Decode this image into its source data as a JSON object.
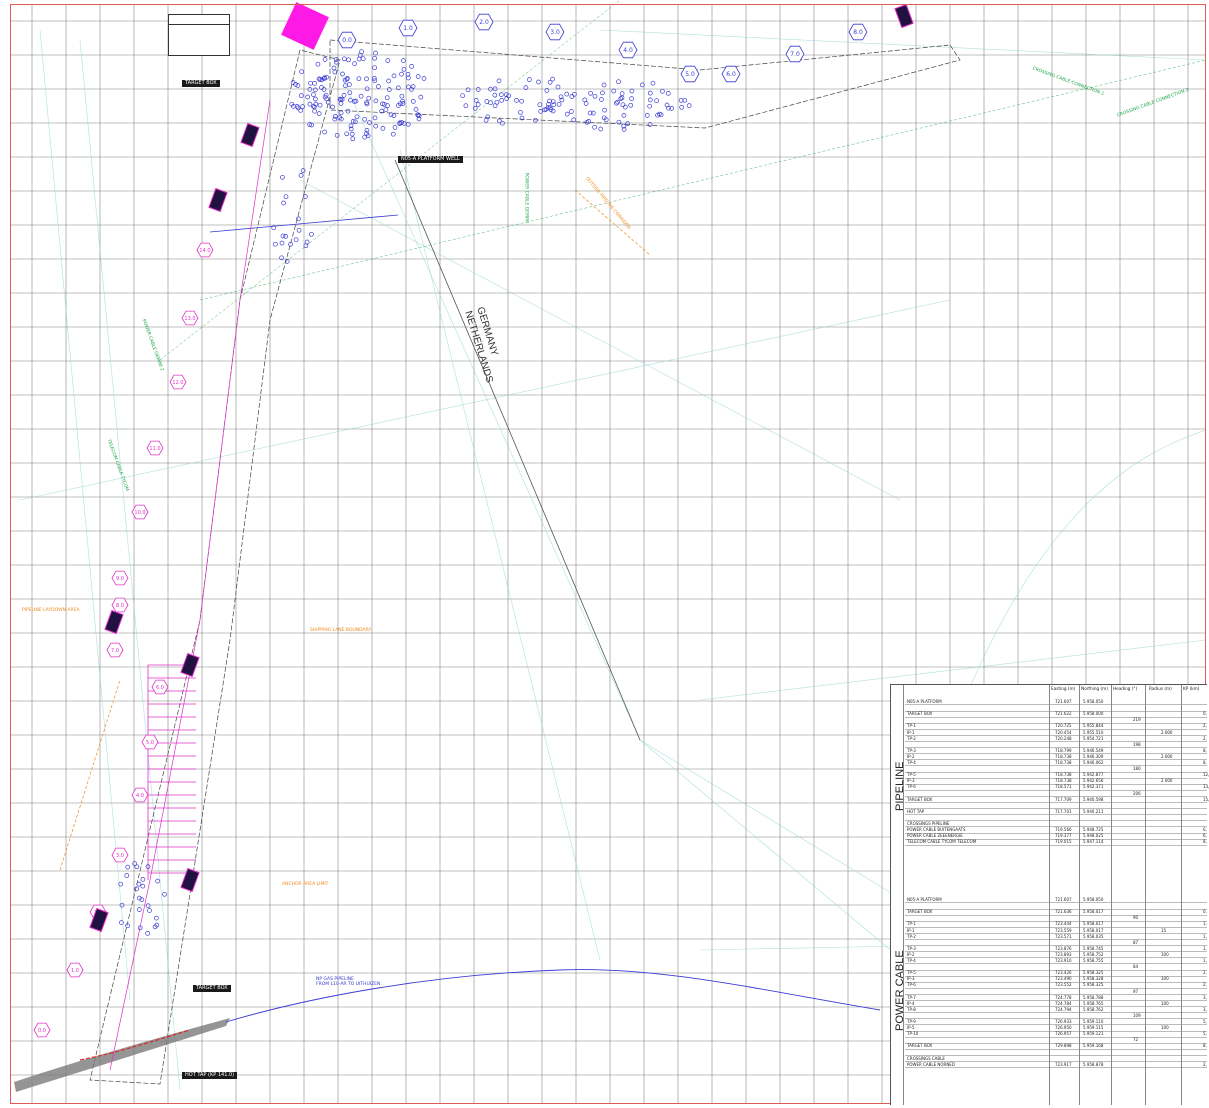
{
  "map": {
    "labels": {
      "country_de": "GERMANY",
      "country_nl": "NETHERLANDS",
      "target_box_top": "TARGET BOX",
      "platform_well": "N05-A PLATFORM WELL",
      "target_box_bottom": "TARGET BOX",
      "hot_tap": "HOT TAP (KP 141.0)",
      "gas_pipeline": "NP GAS PIPELINE",
      "gas_pipeline_2": "FROM L10-AR TO UITHUIZEN"
    },
    "kp_markers_top": [
      "0.0",
      "1.0",
      "2.0",
      "3.0",
      "4.0",
      "5.0",
      "6.0",
      "7.0",
      "8.0"
    ],
    "kp_markers_pink": [
      "0.0",
      "1.0",
      "2.0",
      "3.0",
      "4.0",
      "5.0",
      "6.0",
      "7.0",
      "8.0",
      "9.0",
      "10.0",
      "11.0",
      "12.0",
      "13.0",
      "14.0"
    ],
    "green_notes": [
      "CROSSING CABLE CONNECTION 1",
      "CROSSING CABLE CONNECTION 2",
      "POWER CABLE GEMINI",
      "POWER CABLE GEMINI 2",
      "TELECOM CABLE TYCOM"
    ],
    "orange_notes": [
      "OUTSIDE PIPELINE CORRIDOR",
      "PIPELINE LAYDOWN AREA",
      "SHIPPING LANE BOUNDARY",
      "ANCHOR AREA LIMIT"
    ]
  },
  "table": {
    "headers": [
      "Easting (m)",
      "Northing (m)",
      "Heading (°)",
      "Radius (m)",
      "KP (km)"
    ],
    "sections": [
      "PIPELINE",
      "POWER CABLE"
    ],
    "pipeline_rows": [
      {
        "name": "N05-A PLATFORM",
        "e": "721.607",
        "n": "5.958.050",
        "h": "",
        "r": "",
        "kp": ""
      },
      {
        "name": "",
        "e": "",
        "n": "",
        "h": "",
        "r": "",
        "kp": ""
      },
      {
        "name": "TARGET BOX",
        "e": "721.622",
        "n": "5.958.000",
        "h": "",
        "r": "",
        "kp": "0,"
      },
      {
        "name": "",
        "e": "",
        "n": "",
        "h": "219",
        "r": "",
        "kp": ""
      },
      {
        "name": "TP-1",
        "e": "720.725",
        "n": "5.955.844",
        "h": "",
        "r": "",
        "kp": "2,"
      },
      {
        "name": "IP-1",
        "e": "720.454",
        "n": "5.955.510",
        "h": "",
        "r": "2.000",
        "kp": ""
      },
      {
        "name": "TP-2",
        "e": "720.248",
        "n": "5.954.721",
        "h": "",
        "r": "",
        "kp": "2,"
      },
      {
        "name": "",
        "e": "",
        "n": "",
        "h": "198",
        "r": "",
        "kp": ""
      },
      {
        "name": "TP-3",
        "e": "718.799",
        "n": "5.946.549",
        "h": "",
        "r": "",
        "kp": "8,"
      },
      {
        "name": "IP-2",
        "e": "718.738",
        "n": "5.946.309",
        "h": "",
        "r": "2.000",
        "kp": ""
      },
      {
        "name": "TP-4",
        "e": "718.738",
        "n": "5.946.062",
        "h": "",
        "r": "",
        "kp": "8,"
      },
      {
        "name": "",
        "e": "",
        "n": "",
        "h": "180",
        "r": "",
        "kp": ""
      },
      {
        "name": "TP-5",
        "e": "718.738",
        "n": "5.942.877",
        "h": "",
        "r": "",
        "kp": "12,"
      },
      {
        "name": "IP-3",
        "e": "718.738",
        "n": "5.942.656",
        "h": "",
        "r": "2.000",
        "kp": ""
      },
      {
        "name": "TP-6",
        "e": "718.571",
        "n": "5.942.371",
        "h": "",
        "r": "",
        "kp": "13,"
      },
      {
        "name": "",
        "e": "",
        "n": "",
        "h": "206",
        "r": "",
        "kp": ""
      },
      {
        "name": "TARGET BOX",
        "e": "717.709",
        "n": "5.940.598",
        "h": "",
        "r": "",
        "kp": "15,"
      },
      {
        "name": "",
        "e": "",
        "n": "",
        "h": "",
        "r": "",
        "kp": ""
      },
      {
        "name": "HOT TAP",
        "e": "717.701",
        "n": "5.940.211",
        "h": "",
        "r": "",
        "kp": ""
      },
      {
        "name": "",
        "e": "",
        "n": "",
        "h": "",
        "r": "",
        "kp": ""
      },
      {
        "name": "CROSSINGS PIPELINE",
        "e": "",
        "n": "",
        "h": "",
        "r": "",
        "kp": ""
      },
      {
        "name": "POWER CABLE BUITENGAATS",
        "e": "719.566",
        "n": "5.948.725",
        "h": "",
        "r": "",
        "kp": "6,"
      },
      {
        "name": "POWER CABLE ZEEENERGIE",
        "e": "719.377",
        "n": "5.948.025",
        "h": "",
        "r": "",
        "kp": "6,"
      },
      {
        "name": "TELECOM CABLE TYCOM TELECOM",
        "e": "719.015",
        "n": "5.947.114",
        "h": "",
        "r": "",
        "kp": "8,"
      }
    ],
    "cable_rows": [
      {
        "name": "N05-A PLATFORM",
        "e": "721.607",
        "n": "5.958.050",
        "h": "",
        "r": "",
        "kp": ""
      },
      {
        "name": "",
        "e": "",
        "n": "",
        "h": "",
        "r": "",
        "kp": ""
      },
      {
        "name": "TARGET BOX",
        "e": "721.636",
        "n": "5.958.017",
        "h": "",
        "r": "",
        "kp": "0,"
      },
      {
        "name": "",
        "e": "",
        "n": "",
        "h": "90",
        "r": "",
        "kp": ""
      },
      {
        "name": "TP-1",
        "e": "723.444",
        "n": "5.958.017",
        "h": "",
        "r": "",
        "kp": "1,"
      },
      {
        "name": "IP-1",
        "e": "723.559",
        "n": "5.958.017",
        "h": "",
        "r": "15",
        "kp": ""
      },
      {
        "name": "TP-2",
        "e": "723.571",
        "n": "5.958.035",
        "h": "",
        "r": "",
        "kp": "1,"
      },
      {
        "name": "",
        "e": "",
        "n": "",
        "h": "87",
        "r": "",
        "kp": ""
      },
      {
        "name": "TP-3",
        "e": "723.876",
        "n": "5.958.745",
        "h": "",
        "r": "",
        "kp": "1,"
      },
      {
        "name": "IP-2",
        "e": "723.893",
        "n": "5.958.752",
        "h": "",
        "r": "100",
        "kp": ""
      },
      {
        "name": "TP-4",
        "e": "723.910",
        "n": "5.958.755",
        "h": "",
        "r": "",
        "kp": "1,"
      },
      {
        "name": "",
        "e": "",
        "n": "",
        "h": "84",
        "r": "",
        "kp": ""
      },
      {
        "name": "TP-5",
        "e": "723.426",
        "n": "5.958.325",
        "h": "",
        "r": "",
        "kp": "2,"
      },
      {
        "name": "IP-3",
        "e": "723.490",
        "n": "5.958.328",
        "h": "",
        "r": "100",
        "kp": ""
      },
      {
        "name": "TP-6",
        "e": "723.552",
        "n": "5.958.325",
        "h": "",
        "r": "",
        "kp": "2,"
      },
      {
        "name": "",
        "e": "",
        "n": "",
        "h": "97",
        "r": "",
        "kp": ""
      },
      {
        "name": "TP-7",
        "e": "724.778",
        "n": "5.958.788",
        "h": "",
        "r": "",
        "kp": "3,"
      },
      {
        "name": "IP-4",
        "e": "724.784",
        "n": "5.958.765",
        "h": "",
        "r": "100",
        "kp": ""
      },
      {
        "name": "TP-8",
        "e": "724.794",
        "n": "5.958.762",
        "h": "",
        "r": "",
        "kp": "3,"
      },
      {
        "name": "",
        "e": "",
        "n": "",
        "h": "109",
        "r": "",
        "kp": ""
      },
      {
        "name": "TP-9",
        "e": "726.933",
        "n": "5.959.110",
        "h": "",
        "r": "",
        "kp": "5,"
      },
      {
        "name": "IP-5",
        "e": "726.950",
        "n": "5.959.115",
        "h": "",
        "r": "100",
        "kp": ""
      },
      {
        "name": "TP-10",
        "e": "726.957",
        "n": "5.959.121",
        "h": "",
        "r": "",
        "kp": "5,"
      },
      {
        "name": "",
        "e": "",
        "n": "",
        "h": "72",
        "r": "",
        "kp": ""
      },
      {
        "name": "TARGET BOX",
        "e": "729.898",
        "n": "5.959.168",
        "h": "",
        "r": "",
        "kp": "8,"
      },
      {
        "name": "",
        "e": "",
        "n": "",
        "h": "",
        "r": "",
        "kp": ""
      },
      {
        "name": "CROSSINGS CABLE",
        "e": "",
        "n": "",
        "h": "",
        "r": "",
        "kp": ""
      },
      {
        "name": "POWER CABLE NORNED",
        "e": "723.917",
        "n": "5.958.878",
        "h": "",
        "r": "",
        "kp": "2,"
      }
    ]
  },
  "colors": {
    "grid": "#5f5f5f",
    "frame": "#e05a5a",
    "pink": "#e030c8",
    "blue": "#3b3bd6",
    "green": "#1ea84a",
    "orange": "#f08a1c",
    "magenta_box": "#ff19e6"
  }
}
